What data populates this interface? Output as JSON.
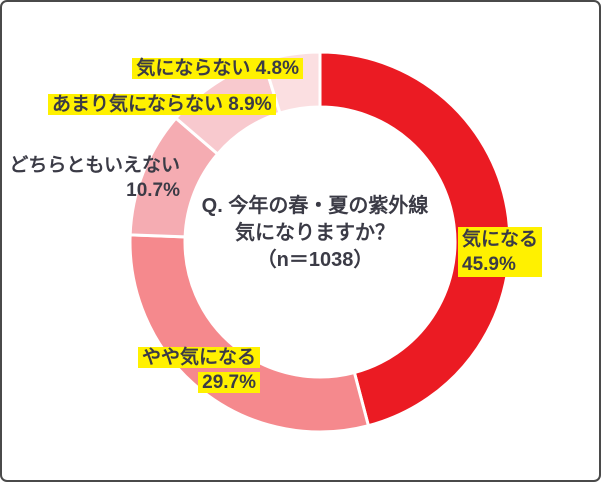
{
  "chart_data": {
    "type": "pie",
    "subtype": "donut",
    "title": "Q. 今年の春・夏の紫外線 気になりますか？",
    "sample_size": 1038,
    "start_angle_deg": 0,
    "direction": "clockwise",
    "legend_position": "none",
    "labels_on_chart": true,
    "categories": [
      "気になる",
      "やや気になる",
      "どちらともいえない",
      "あまり気にならない",
      "気にならない"
    ],
    "values": [
      45.9,
      29.7,
      10.7,
      8.9,
      4.8
    ],
    "colors": [
      "#eb1b23",
      "#f5898d",
      "#f5acb2",
      "#f8c9ce",
      "#fbdfe1"
    ],
    "highlighted_categories": [
      "気になる",
      "やや気になる",
      "あまり気にならない",
      "気にならない"
    ]
  },
  "center_text": {
    "line1": "Q. 今年の春・夏の紫外線",
    "line2": "気になりますか？",
    "line3": "（n＝1038）"
  },
  "labels": {
    "kininaru": {
      "line1": "気になる",
      "line2": "45.9%"
    },
    "yaya": {
      "line1": "やや気になる",
      "line2": "29.7%"
    },
    "dochira": {
      "line1": "どちらともいえない",
      "line2": "10.7%"
    },
    "amari": {
      "text": "あまり気にならない 8.9%"
    },
    "kininaranai": {
      "text": "気にならない 4.8%"
    }
  },
  "colors": {
    "text": "#3b3b46",
    "highlight": "#fff100",
    "border": "#4a4a4a",
    "background": "#ffffff",
    "slice_gap": "#ffffff"
  }
}
